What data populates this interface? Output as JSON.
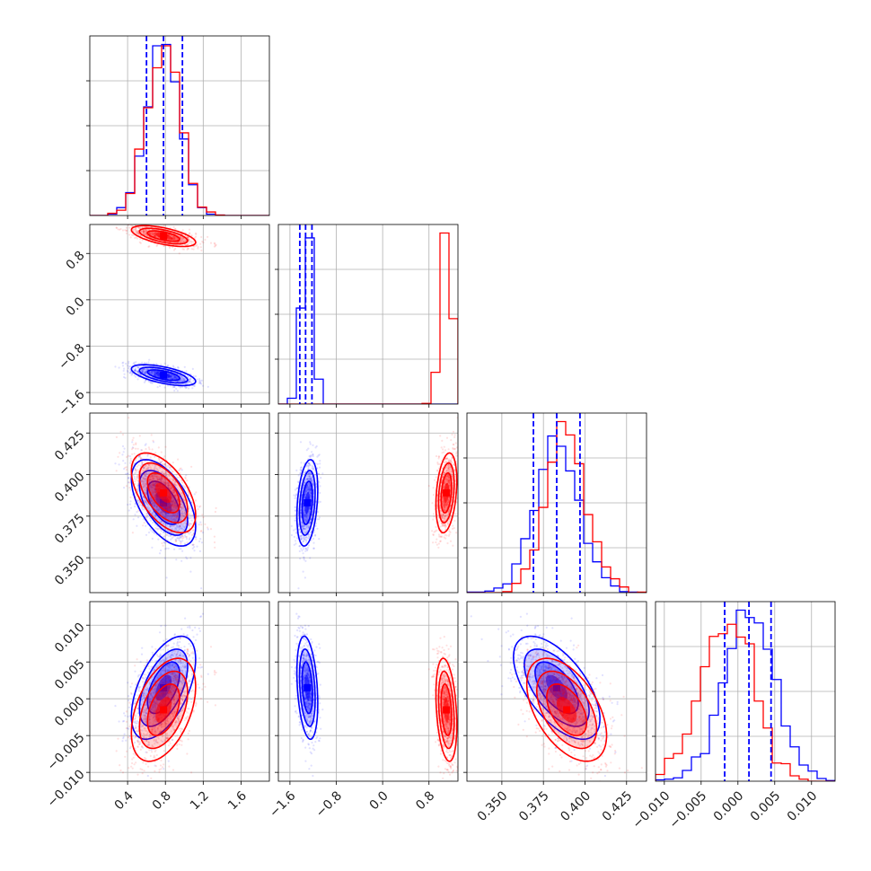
{
  "figure": {
    "type": "corner-plot"
  },
  "chart_data": {
    "type": "scatter",
    "parameters": [
      {
        "range": [
          0.0,
          1.9
        ],
        "ticks": [
          0.4,
          0.8,
          1.2,
          1.6
        ],
        "tick_labels": [
          "0.4",
          "0.8",
          "1.2",
          "1.6"
        ]
      },
      {
        "range": [
          -1.8,
          1.3
        ],
        "ticks": [
          -1.6,
          -0.8,
          0.0,
          0.8
        ],
        "tick_labels": [
          "−1.6",
          "−0.8",
          "0.0",
          "0.8"
        ]
      },
      {
        "range": [
          0.329,
          0.437
        ],
        "ticks": [
          0.35,
          0.375,
          0.4,
          0.425
        ],
        "tick_labels": [
          "0.350",
          "0.375",
          "0.400",
          "0.425"
        ]
      },
      {
        "range": [
          -0.0112,
          0.0132
        ],
        "ticks": [
          -0.01,
          -0.005,
          0.0,
          0.005,
          0.01
        ],
        "tick_labels": [
          "−0.010",
          "−0.005",
          "0.000",
          "0.005",
          "0.010"
        ]
      }
    ],
    "series": [
      {
        "color": "#0000ff",
        "mean": [
          0.78,
          -1.3,
          0.383,
          0.0015
        ],
        "std": [
          0.17,
          0.09,
          0.013,
          0.0035
        ],
        "corr": [
          [
            1.0,
            -0.6,
            -0.55,
            0.55
          ],
          [
            -0.6,
            1.0,
            0.3,
            -0.3
          ],
          [
            -0.55,
            0.3,
            1.0,
            -0.6
          ],
          [
            0.55,
            -0.3,
            -0.6,
            1.0
          ]
        ],
        "quantiles": [
          [
            0.6,
            0.78,
            0.98
          ],
          [
            -1.43,
            -1.33,
            -1.22
          ],
          [
            0.369,
            0.383,
            0.397
          ],
          [
            -0.0018,
            0.0015,
            0.0045
          ]
        ]
      },
      {
        "color": "#ff0000",
        "mean": [
          0.78,
          1.1,
          0.389,
          -0.0015
        ],
        "std": [
          0.17,
          0.09,
          0.012,
          0.0035
        ],
        "corr": [
          [
            1.0,
            -0.6,
            -0.55,
            0.45
          ],
          [
            -0.6,
            1.0,
            0.3,
            -0.3
          ],
          [
            -0.55,
            0.3,
            1.0,
            -0.5
          ],
          [
            0.45,
            -0.3,
            -0.5,
            1.0
          ]
        ]
      }
    ],
    "grid": true,
    "hist_bins": 20
  }
}
